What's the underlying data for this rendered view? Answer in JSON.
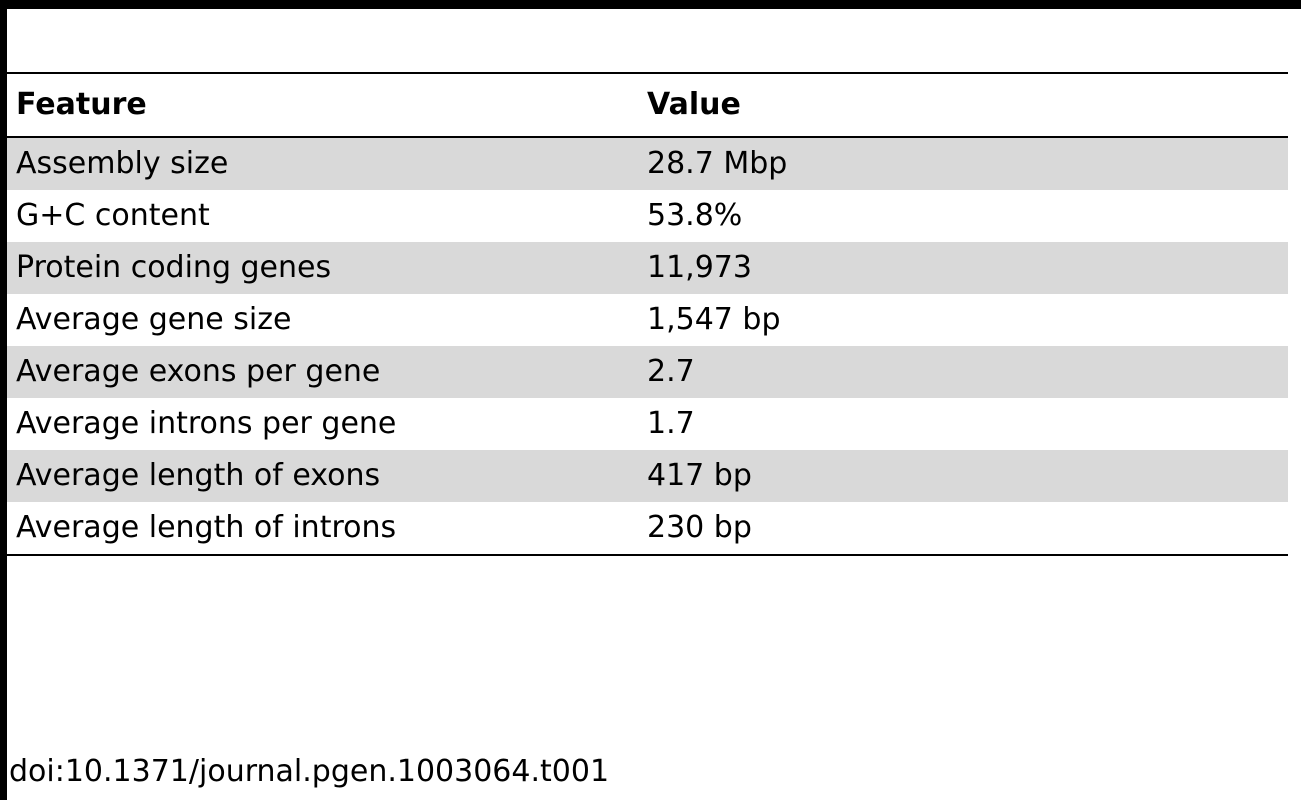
{
  "table": {
    "header": {
      "feature": "Feature",
      "value": "Value"
    },
    "rows": [
      {
        "feature": "Assembly size",
        "value": "28.7 Mbp"
      },
      {
        "feature": "G+C content",
        "value": "53.8%"
      },
      {
        "feature": "Protein coding genes",
        "value": "11,973"
      },
      {
        "feature": "Average gene size",
        "value": "1,547 bp"
      },
      {
        "feature": "Average exons per gene",
        "value": "2.7"
      },
      {
        "feature": "Average introns per gene",
        "value": "1.7"
      },
      {
        "feature": "Average length of exons",
        "value": "417 bp"
      },
      {
        "feature": "Average length of introns",
        "value": "230 bp"
      }
    ]
  },
  "footer": {
    "doi": "doi:10.1371/journal.pgen.1003064.t001"
  },
  "colors": {
    "rule": "#000000",
    "shaded_row": "#d9d9d9",
    "background": "#ffffff"
  }
}
